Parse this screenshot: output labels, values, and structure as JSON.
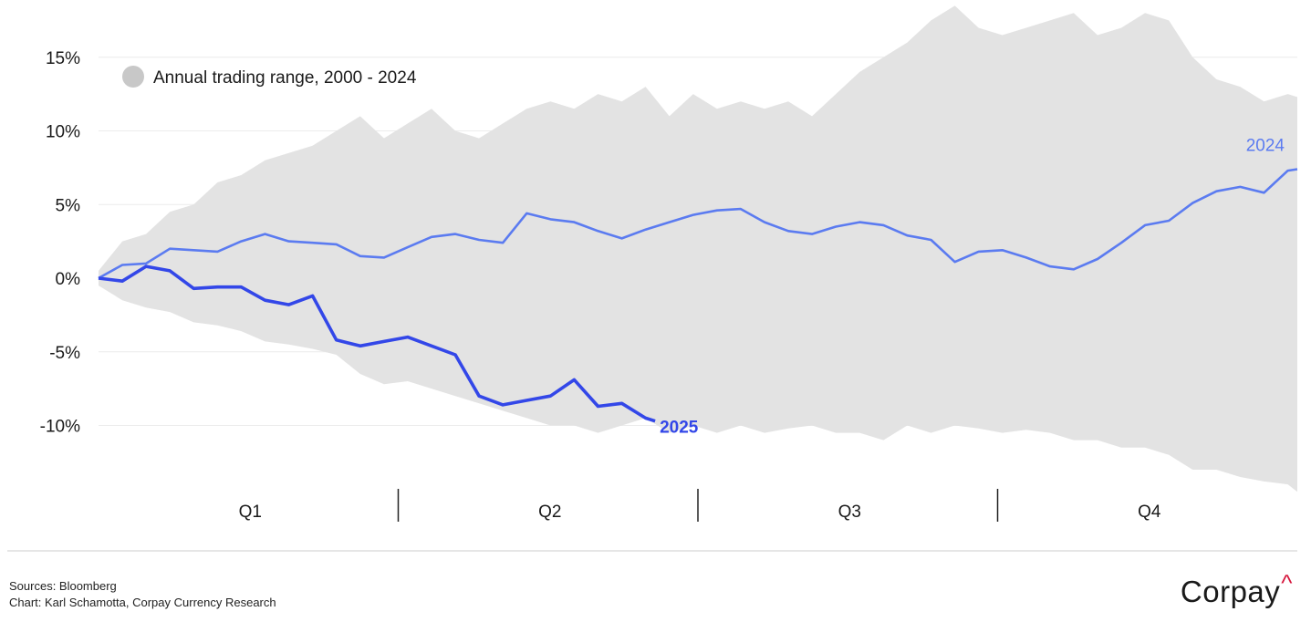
{
  "chart_data": {
    "type": "line",
    "x_unit": "trading day of year",
    "y_unit": "percent",
    "ylim": [
      -14.5,
      18.5
    ],
    "y_ticks": [
      15,
      10,
      5,
      0,
      -5,
      -10
    ],
    "y_tick_labels": [
      "15%",
      "10%",
      "5%",
      "0%",
      "-5%",
      "-10%"
    ],
    "quarters": [
      "Q1",
      "Q2",
      "Q3",
      "Q4"
    ],
    "legend": {
      "label": "Annual trading range, 2000 - 2024",
      "position": "top-left",
      "color": "#c8c8c8"
    },
    "range_band": {
      "name": "Annual trading range, 2000 - 2024",
      "color": "#e3e3e3",
      "x": [
        0,
        5,
        10,
        15,
        20,
        25,
        30,
        35,
        40,
        45,
        50,
        55,
        60,
        65,
        70,
        75,
        80,
        85,
        90,
        95,
        100,
        105,
        110,
        115,
        120,
        125,
        130,
        135,
        140,
        145,
        150,
        155,
        160,
        165,
        170,
        175,
        180,
        185,
        190,
        195,
        200,
        205,
        210,
        215,
        220,
        225,
        230,
        235,
        240,
        245,
        250,
        252
      ],
      "upper": [
        0.5,
        2.5,
        3.0,
        4.5,
        5.0,
        6.5,
        7.0,
        8.0,
        8.5,
        9.0,
        10.0,
        11.0,
        9.5,
        10.5,
        11.5,
        10.0,
        9.5,
        10.5,
        11.5,
        12.0,
        11.5,
        12.5,
        12.0,
        13.0,
        11.0,
        12.5,
        11.5,
        12.0,
        11.5,
        12.0,
        11.0,
        12.5,
        14.0,
        15.0,
        16.0,
        17.5,
        18.5,
        17.0,
        16.5,
        17.0,
        17.5,
        18.0,
        16.5,
        17.0,
        18.0,
        17.5,
        15.0,
        13.5,
        13.0,
        12.0,
        12.5,
        12.3
      ],
      "lower": [
        -0.5,
        -1.5,
        -2.0,
        -2.3,
        -3.0,
        -3.2,
        -3.6,
        -4.3,
        -4.5,
        -4.8,
        -5.2,
        -6.5,
        -7.2,
        -7.0,
        -7.5,
        -8.0,
        -8.5,
        -9.0,
        -9.5,
        -10.0,
        -10.0,
        -10.5,
        -10.0,
        -9.5,
        -10.5,
        -10.0,
        -10.5,
        -10.0,
        -10.5,
        -10.2,
        -10.0,
        -10.5,
        -10.5,
        -11.0,
        -10.0,
        -10.5,
        -10.0,
        -10.2,
        -10.5,
        -10.3,
        -10.5,
        -11.0,
        -11.0,
        -11.5,
        -11.5,
        -12.0,
        -13.0,
        -13.0,
        -13.5,
        -13.8,
        -14.0,
        -14.5
      ]
    },
    "series": [
      {
        "name": "2024",
        "color": "#5b7bf0",
        "x": [
          0,
          5,
          10,
          15,
          20,
          25,
          30,
          35,
          40,
          45,
          50,
          55,
          60,
          65,
          70,
          75,
          80,
          85,
          90,
          95,
          100,
          105,
          110,
          115,
          120,
          125,
          130,
          135,
          140,
          145,
          150,
          155,
          160,
          165,
          170,
          175,
          180,
          185,
          190,
          195,
          200,
          205,
          210,
          215,
          220,
          225,
          230,
          235,
          240,
          245,
          250,
          252
        ],
        "values": [
          0.0,
          0.9,
          1.0,
          2.0,
          1.9,
          1.8,
          2.5,
          3.0,
          2.5,
          2.4,
          2.3,
          1.5,
          1.4,
          2.1,
          2.8,
          3.0,
          2.6,
          2.4,
          4.4,
          4.0,
          3.8,
          3.2,
          2.7,
          3.3,
          3.8,
          4.3,
          4.6,
          4.7,
          3.8,
          3.2,
          3.0,
          3.5,
          3.8,
          3.6,
          2.9,
          2.6,
          1.1,
          1.8,
          1.9,
          1.4,
          0.8,
          0.6,
          1.3,
          2.4,
          3.6,
          3.9,
          5.1,
          5.9,
          6.2,
          5.8,
          7.3,
          7.4
        ]
      },
      {
        "name": "2025",
        "color": "#3347e8",
        "x": [
          0,
          5,
          10,
          15,
          20,
          25,
          30,
          35,
          40,
          45,
          50,
          55,
          60,
          65,
          70,
          75,
          80,
          85,
          90,
          95,
          100,
          105,
          110,
          115,
          117
        ],
        "values": [
          0.0,
          -0.2,
          0.8,
          0.5,
          -0.7,
          -0.6,
          -0.6,
          -1.5,
          -1.8,
          -1.2,
          -4.2,
          -4.6,
          -4.3,
          -4.0,
          -4.6,
          -5.2,
          -8.0,
          -8.6,
          -8.3,
          -8.0,
          -6.9,
          -8.7,
          -8.5,
          -9.5,
          -9.7
        ]
      }
    ]
  },
  "series_labels": {
    "s2024": "2024",
    "s2025": "2025"
  },
  "footer": {
    "sources": "Sources: Bloomberg",
    "credit": "Chart: Karl Schamotta, Corpay Currency Research"
  },
  "logo": {
    "text": "Corpay",
    "caret": "^"
  }
}
